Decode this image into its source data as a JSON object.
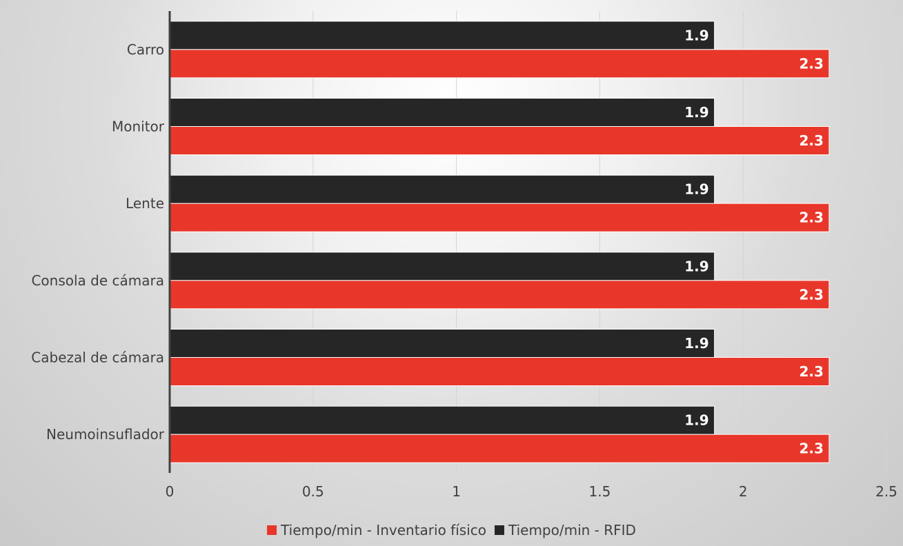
{
  "chart_data": {
    "type": "bar",
    "orientation": "horizontal",
    "categories": [
      "Carro",
      "Monitor",
      "Lente",
      "Consola de cámara",
      "Cabezal de cámara",
      "Neumoinsuflador"
    ],
    "series": [
      {
        "name": "Tiempo/min - RFID",
        "values": [
          1.9,
          1.9,
          1.9,
          1.9,
          1.9,
          1.9
        ],
        "color": "#262626"
      },
      {
        "name": "Tiempo/min - Inventario físico",
        "values": [
          2.3,
          2.3,
          2.3,
          2.3,
          2.3,
          2.3
        ],
        "color": "#e8372a"
      }
    ],
    "xlim": [
      0,
      2.5
    ],
    "xticks": [
      0,
      0.5,
      1,
      1.5,
      2,
      2.5
    ],
    "xtick_labels": [
      "0",
      "0.5",
      "1",
      "1.5",
      "2",
      "2.5"
    ],
    "data_labels": true,
    "gridlines": "vertical",
    "legend": {
      "placement": "bottom",
      "order": [
        "Tiempo/min - Inventario físico",
        "Tiempo/min - RFID"
      ]
    }
  }
}
